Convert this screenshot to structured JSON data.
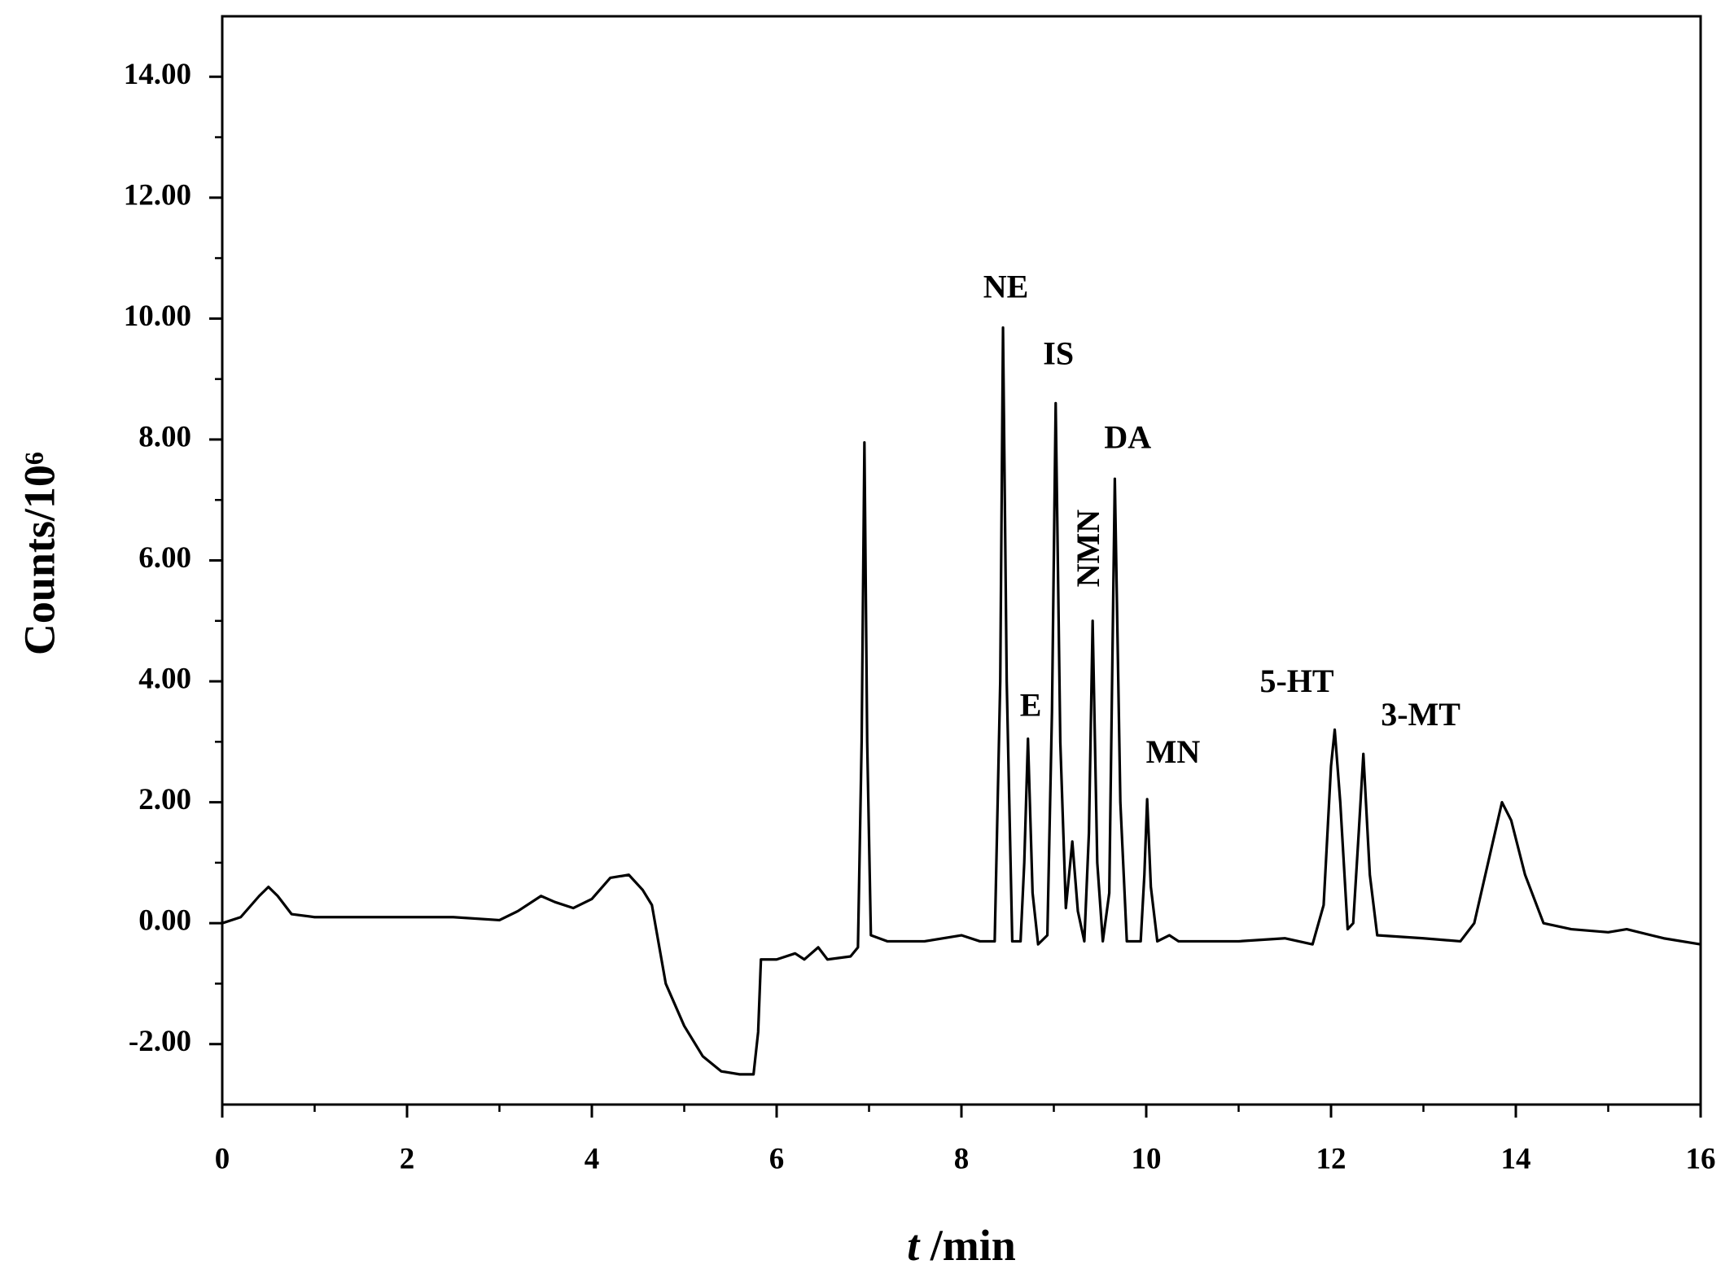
{
  "chart_data": {
    "type": "line",
    "y_label": "Counts/10⁶",
    "x_label_symbol": "t",
    "x_label_unit": " /min",
    "xlim": [
      0,
      16
    ],
    "xticks": [
      0,
      2,
      4,
      6,
      8,
      10,
      12,
      14,
      16
    ],
    "ylim": [
      -3,
      15
    ],
    "yticks": [
      {
        "value": -2,
        "label": "-2.00"
      },
      {
        "value": 0,
        "label": "0.00"
      },
      {
        "value": 2,
        "label": "2.00"
      },
      {
        "value": 4,
        "label": "4.00"
      },
      {
        "value": 6,
        "label": "6.00"
      },
      {
        "value": 8,
        "label": "8.00"
      },
      {
        "value": 10,
        "label": "10.00"
      },
      {
        "value": 12,
        "label": "12.00"
      },
      {
        "value": 14,
        "label": "14.00"
      }
    ],
    "grid": false,
    "x": [
      0,
      0.2,
      0.4,
      0.5,
      0.6,
      0.75,
      1.0,
      1.5,
      2.0,
      2.5,
      3.0,
      3.2,
      3.45,
      3.6,
      3.8,
      4.0,
      4.2,
      4.4,
      4.55,
      4.65,
      4.8,
      5.0,
      5.2,
      5.4,
      5.6,
      5.75,
      5.8,
      5.83,
      6.0,
      6.2,
      6.3,
      6.45,
      6.55,
      6.8,
      6.88,
      6.92,
      6.95,
      6.98,
      7.02,
      7.2,
      7.6,
      8.0,
      8.2,
      8.36,
      8.42,
      8.45,
      8.49,
      8.55,
      8.64,
      8.68,
      8.72,
      8.77,
      8.83,
      8.93,
      8.98,
      9.02,
      9.07,
      9.13,
      9.2,
      9.26,
      9.33,
      9.38,
      9.42,
      9.47,
      9.53,
      9.6,
      9.66,
      9.72,
      9.79,
      9.94,
      9.98,
      10.01,
      10.05,
      10.12,
      10.25,
      10.35,
      11.0,
      11.5,
      11.8,
      11.92,
      12.0,
      12.04,
      12.1,
      12.18,
      12.24,
      12.3,
      12.35,
      12.42,
      12.5,
      13.0,
      13.4,
      13.55,
      13.7,
      13.85,
      13.95,
      14.1,
      14.3,
      14.6,
      15.0,
      15.2,
      15.6,
      16.0
    ],
    "series": [
      {
        "color": "#000000",
        "values": [
          0.0,
          0.1,
          0.45,
          0.6,
          0.45,
          0.15,
          0.1,
          0.1,
          0.1,
          0.1,
          0.05,
          0.2,
          0.45,
          0.35,
          0.25,
          0.4,
          0.75,
          0.8,
          0.55,
          0.3,
          -1.0,
          -1.7,
          -2.2,
          -2.45,
          -2.5,
          -2.5,
          -1.8,
          -0.6,
          -0.6,
          -0.5,
          -0.6,
          -0.4,
          -0.6,
          -0.55,
          -0.4,
          3.0,
          7.95,
          3.0,
          -0.2,
          -0.3,
          -0.3,
          -0.2,
          -0.3,
          -0.3,
          4.0,
          9.85,
          4.0,
          -0.3,
          -0.3,
          1.0,
          3.05,
          0.5,
          -0.35,
          -0.2,
          3.5,
          8.6,
          3.0,
          0.25,
          1.35,
          0.2,
          -0.3,
          1.5,
          5.0,
          1.0,
          -0.3,
          0.5,
          7.35,
          2.0,
          -0.3,
          -0.3,
          0.8,
          2.05,
          0.6,
          -0.3,
          -0.2,
          -0.3,
          -0.3,
          -0.25,
          -0.35,
          0.3,
          2.6,
          3.2,
          2.0,
          -0.1,
          0.0,
          1.5,
          2.8,
          0.8,
          -0.2,
          -0.25,
          -0.3,
          0.0,
          1.0,
          2.0,
          1.7,
          0.8,
          0.0,
          -0.1,
          -0.15,
          -0.1,
          -0.25,
          -0.35
        ]
      }
    ],
    "annotations": [
      {
        "text": "NE",
        "x": 8.48,
        "y": 10.47
      },
      {
        "text": "IS",
        "x": 9.05,
        "y": 9.37
      },
      {
        "text": "DA",
        "x": 9.8,
        "y": 7.98
      },
      {
        "text": "NMN",
        "x": 9.41,
        "y": 6.2,
        "rotate": -90
      },
      {
        "text": "E",
        "x": 8.75,
        "y": 3.55
      },
      {
        "text": "MN",
        "x": 10.29,
        "y": 2.78
      },
      {
        "text": "5-HT",
        "x": 11.63,
        "y": 3.95
      },
      {
        "text": "3-MT",
        "x": 12.97,
        "y": 3.4
      }
    ]
  }
}
